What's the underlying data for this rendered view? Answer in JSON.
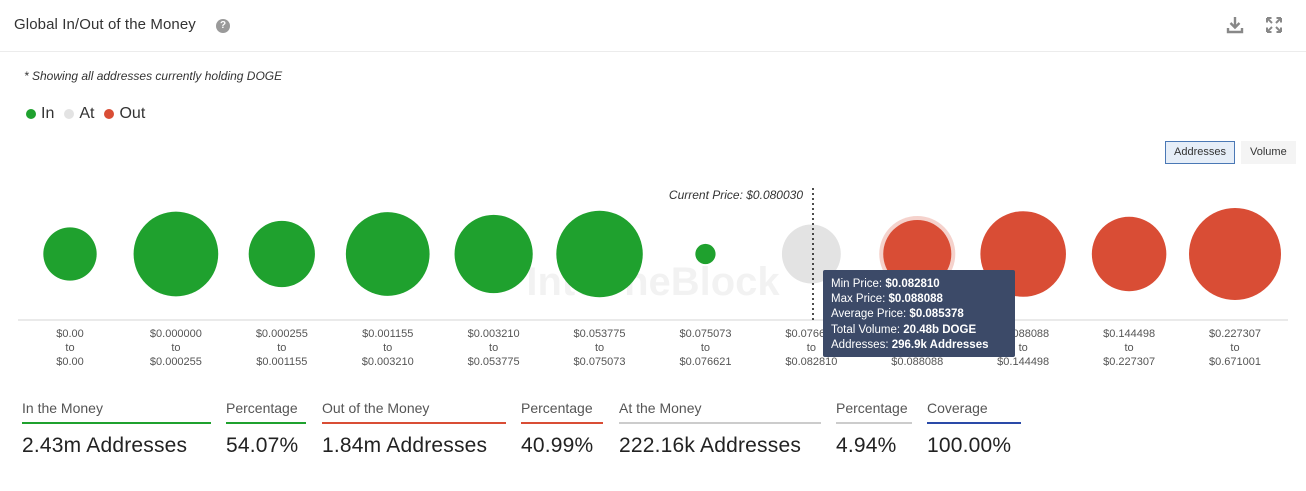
{
  "header": {
    "title": "Global In/Out of the Money",
    "help_icon": "question-circle-icon",
    "download_icon": "download-icon",
    "expand_icon": "expand-icon"
  },
  "note": "* Showing all addresses currently holding DOGE",
  "legend": [
    {
      "label": "In",
      "color": "#1fa12e"
    },
    {
      "label": "At",
      "color": "#e3e3e3"
    },
    {
      "label": "Out",
      "color": "#d94d35"
    }
  ],
  "toggles": {
    "addresses": "Addresses",
    "volume": "Volume",
    "selected": "Addresses"
  },
  "chart_data": {
    "type": "bubble",
    "watermark": "IntoTheBlock",
    "current_price_label": "Current Price: $0.080030",
    "buckets": [
      {
        "from": "$0.00",
        "to": "$0.00",
        "status": "in",
        "relative_size": 0.58
      },
      {
        "from": "$0.000000",
        "to": "$0.000255",
        "status": "in",
        "relative_size": 0.92
      },
      {
        "from": "$0.000255",
        "to": "$0.001155",
        "status": "in",
        "relative_size": 0.72
      },
      {
        "from": "$0.001155",
        "to": "$0.003210",
        "status": "in",
        "relative_size": 0.91
      },
      {
        "from": "$0.003210",
        "to": "$0.053775",
        "status": "in",
        "relative_size": 0.85
      },
      {
        "from": "$0.053775",
        "to": "$0.075073",
        "status": "in",
        "relative_size": 0.94
      },
      {
        "from": "$0.075073",
        "to": "$0.076621",
        "status": "in",
        "relative_size": 0.22
      },
      {
        "from": "$0.076621",
        "to": "$0.082810",
        "status": "at",
        "relative_size": 0.64
      },
      {
        "from": "$0.082810",
        "to": "$0.088088",
        "status": "out",
        "relative_size": 0.74,
        "highlighted": true
      },
      {
        "from": "$0.088088",
        "to": "$0.144498",
        "status": "out",
        "relative_size": 0.93
      },
      {
        "from": "$0.144498",
        "to": "$0.227307",
        "status": "out",
        "relative_size": 0.81
      },
      {
        "from": "$0.227307",
        "to": "$0.671001",
        "status": "out",
        "relative_size": 1.0
      }
    ]
  },
  "tooltip": {
    "min_label": "Min Price:",
    "min_value": "$0.082810",
    "max_label": "Max Price:",
    "max_value": "$0.088088",
    "avg_label": "Average Price:",
    "avg_value": "$0.085378",
    "vol_label": "Total Volume:",
    "vol_value": "20.48b DOGE",
    "addr_label": "Addresses:",
    "addr_value": "296.9k Addresses"
  },
  "stats": [
    {
      "label": "In the Money",
      "value": "2.43m Addresses",
      "color": "#1fa12e"
    },
    {
      "label": "Percentage",
      "value": "54.07%",
      "color": "#1fa12e"
    },
    {
      "label": "Out of the Money",
      "value": "1.84m Addresses",
      "color": "#d94d35"
    },
    {
      "label": "Percentage",
      "value": "40.99%",
      "color": "#d94d35"
    },
    {
      "label": "At the Money",
      "value": "222.16k Addresses",
      "color": "#cccccc"
    },
    {
      "label": "Percentage",
      "value": "4.94%",
      "color": "#cccccc"
    },
    {
      "label": "Coverage",
      "value": "100.00%",
      "color": "#2a4aa8"
    }
  ]
}
